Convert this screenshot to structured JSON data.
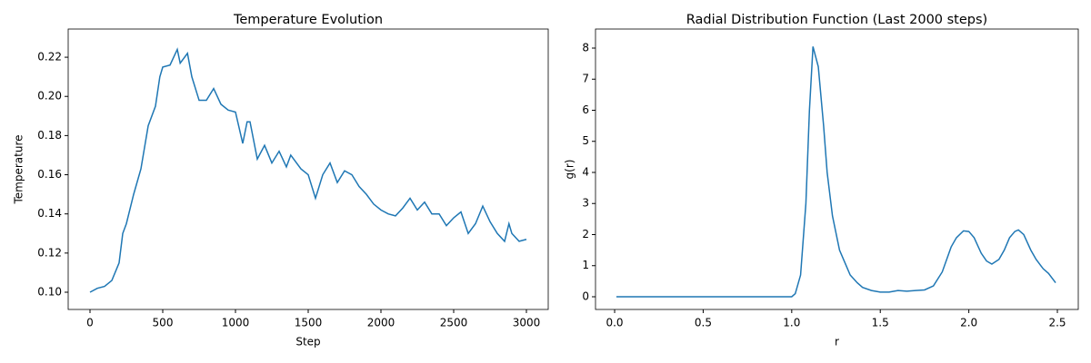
{
  "chart_data": [
    {
      "type": "line",
      "title": "Temperature Evolution",
      "xlabel": "Step",
      "ylabel": "Temperature",
      "x": [
        0,
        50,
        100,
        150,
        200,
        225,
        250,
        300,
        350,
        400,
        450,
        480,
        500,
        550,
        600,
        620,
        670,
        700,
        750,
        800,
        850,
        900,
        950,
        1000,
        1050,
        1080,
        1100,
        1150,
        1200,
        1250,
        1300,
        1350,
        1380,
        1450,
        1500,
        1550,
        1600,
        1650,
        1700,
        1750,
        1800,
        1850,
        1900,
        1950,
        2000,
        2050,
        2100,
        2150,
        2200,
        2250,
        2300,
        2350,
        2400,
        2450,
        2500,
        2550,
        2600,
        2650,
        2700,
        2750,
        2800,
        2850,
        2880,
        2900,
        2950,
        3000
      ],
      "series": [
        {
          "name": "Temperature",
          "color": "#1f77b4",
          "values": [
            0.1,
            0.102,
            0.103,
            0.106,
            0.115,
            0.13,
            0.135,
            0.15,
            0.163,
            0.185,
            0.195,
            0.21,
            0.215,
            0.216,
            0.224,
            0.217,
            0.222,
            0.21,
            0.198,
            0.198,
            0.204,
            0.196,
            0.193,
            0.192,
            0.176,
            0.187,
            0.187,
            0.168,
            0.175,
            0.166,
            0.172,
            0.164,
            0.17,
            0.163,
            0.16,
            0.148,
            0.16,
            0.166,
            0.156,
            0.162,
            0.16,
            0.154,
            0.15,
            0.145,
            0.142,
            0.14,
            0.139,
            0.143,
            0.148,
            0.142,
            0.146,
            0.14,
            0.14,
            0.134,
            0.138,
            0.141,
            0.13,
            0.135,
            0.144,
            0.136,
            0.13,
            0.126,
            0.135,
            0.13,
            0.126,
            0.127
          ]
        }
      ],
      "xlim": [
        -150,
        3150
      ],
      "ylim": [
        0.0912,
        0.2344
      ],
      "xticks": [
        0,
        500,
        1000,
        1500,
        2000,
        2500,
        3000
      ],
      "yticks": [
        {
          "value": 0.1,
          "label": "0.10"
        },
        {
          "value": 0.12,
          "label": "0.12"
        },
        {
          "value": 0.14,
          "label": "0.14"
        },
        {
          "value": 0.16,
          "label": "0.16"
        },
        {
          "value": 0.18,
          "label": "0.18"
        },
        {
          "value": 0.2,
          "label": "0.20"
        },
        {
          "value": 0.22,
          "label": "0.22"
        }
      ]
    },
    {
      "type": "line",
      "title": "Radial Distribution Function (Last 2000 steps)",
      "xlabel": "r",
      "ylabel": "g(r)",
      "x": [
        0.01,
        0.2,
        0.4,
        0.6,
        0.8,
        1.0,
        1.02,
        1.05,
        1.08,
        1.1,
        1.12,
        1.15,
        1.18,
        1.2,
        1.23,
        1.27,
        1.3,
        1.33,
        1.37,
        1.4,
        1.45,
        1.5,
        1.55,
        1.6,
        1.65,
        1.7,
        1.75,
        1.8,
        1.85,
        1.9,
        1.93,
        1.97,
        2.0,
        2.03,
        2.07,
        2.1,
        2.13,
        2.17,
        2.2,
        2.23,
        2.26,
        2.28,
        2.31,
        2.35,
        2.38,
        2.42,
        2.45,
        2.49
      ],
      "series": [
        {
          "name": "g(r)",
          "color": "#1f77b4",
          "values": [
            0,
            0,
            0,
            0,
            0,
            0,
            0.1,
            0.7,
            3.0,
            6.0,
            8.05,
            7.4,
            5.5,
            4.0,
            2.6,
            1.5,
            1.1,
            0.7,
            0.45,
            0.3,
            0.2,
            0.15,
            0.15,
            0.2,
            0.18,
            0.2,
            0.22,
            0.35,
            0.8,
            1.6,
            1.9,
            2.12,
            2.1,
            1.9,
            1.4,
            1.15,
            1.05,
            1.2,
            1.5,
            1.9,
            2.1,
            2.15,
            2.0,
            1.5,
            1.2,
            0.9,
            0.75,
            0.45
          ]
        }
      ],
      "xlim": [
        -0.108,
        2.618
      ],
      "ylim": [
        -0.409,
        8.613
      ],
      "xticks": [
        {
          "value": 0.0,
          "label": "0.0"
        },
        0.5,
        {
          "value": 1.0,
          "label": "1.0"
        },
        1.5,
        {
          "value": 2.0,
          "label": "2.0"
        },
        2.5
      ],
      "yticks": [
        0,
        1,
        2,
        3,
        4,
        5,
        6,
        7,
        8
      ]
    }
  ]
}
